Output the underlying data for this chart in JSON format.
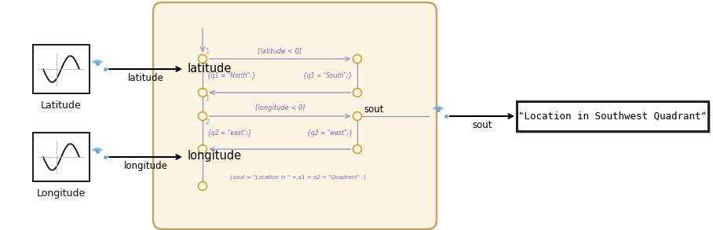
{
  "bg_color": "#ffffff",
  "chart_bg": "#fdf5e4",
  "chart_border": "#c8a060",
  "block_border": "#222222",
  "arrow_color": "#000000",
  "sl_line_color": "#9090b8",
  "sl_junction_color": "#d4a030",
  "sl_text_color": "#9060a0",
  "label_color": "#000000",
  "wifi_color": "#70a8d0",
  "title_latitude": "Latitude",
  "title_longitude": "Longitude",
  "label_latitude": "latitude",
  "label_longitude": "longitude",
  "label_sout_out": "sout",
  "label_sout_in": "sout",
  "display_text": "\"Location in Southwest Quadrant\"",
  "trans1_label": "[latitude < 0]",
  "action_north": "{q1 = \"North\";}",
  "action_south": "{q1 = \"South\";}",
  "trans2_label": "[longitude < 0]",
  "action_east": "{q2 = \"east\";}",
  "action_west": "{q2 = \"west\";}",
  "input_lat_label": "latitude",
  "input_lon_label": "longitude",
  "output_action": "{sout = \"Location in \" + q1 + q2 + \"Quadrant\" ;}"
}
